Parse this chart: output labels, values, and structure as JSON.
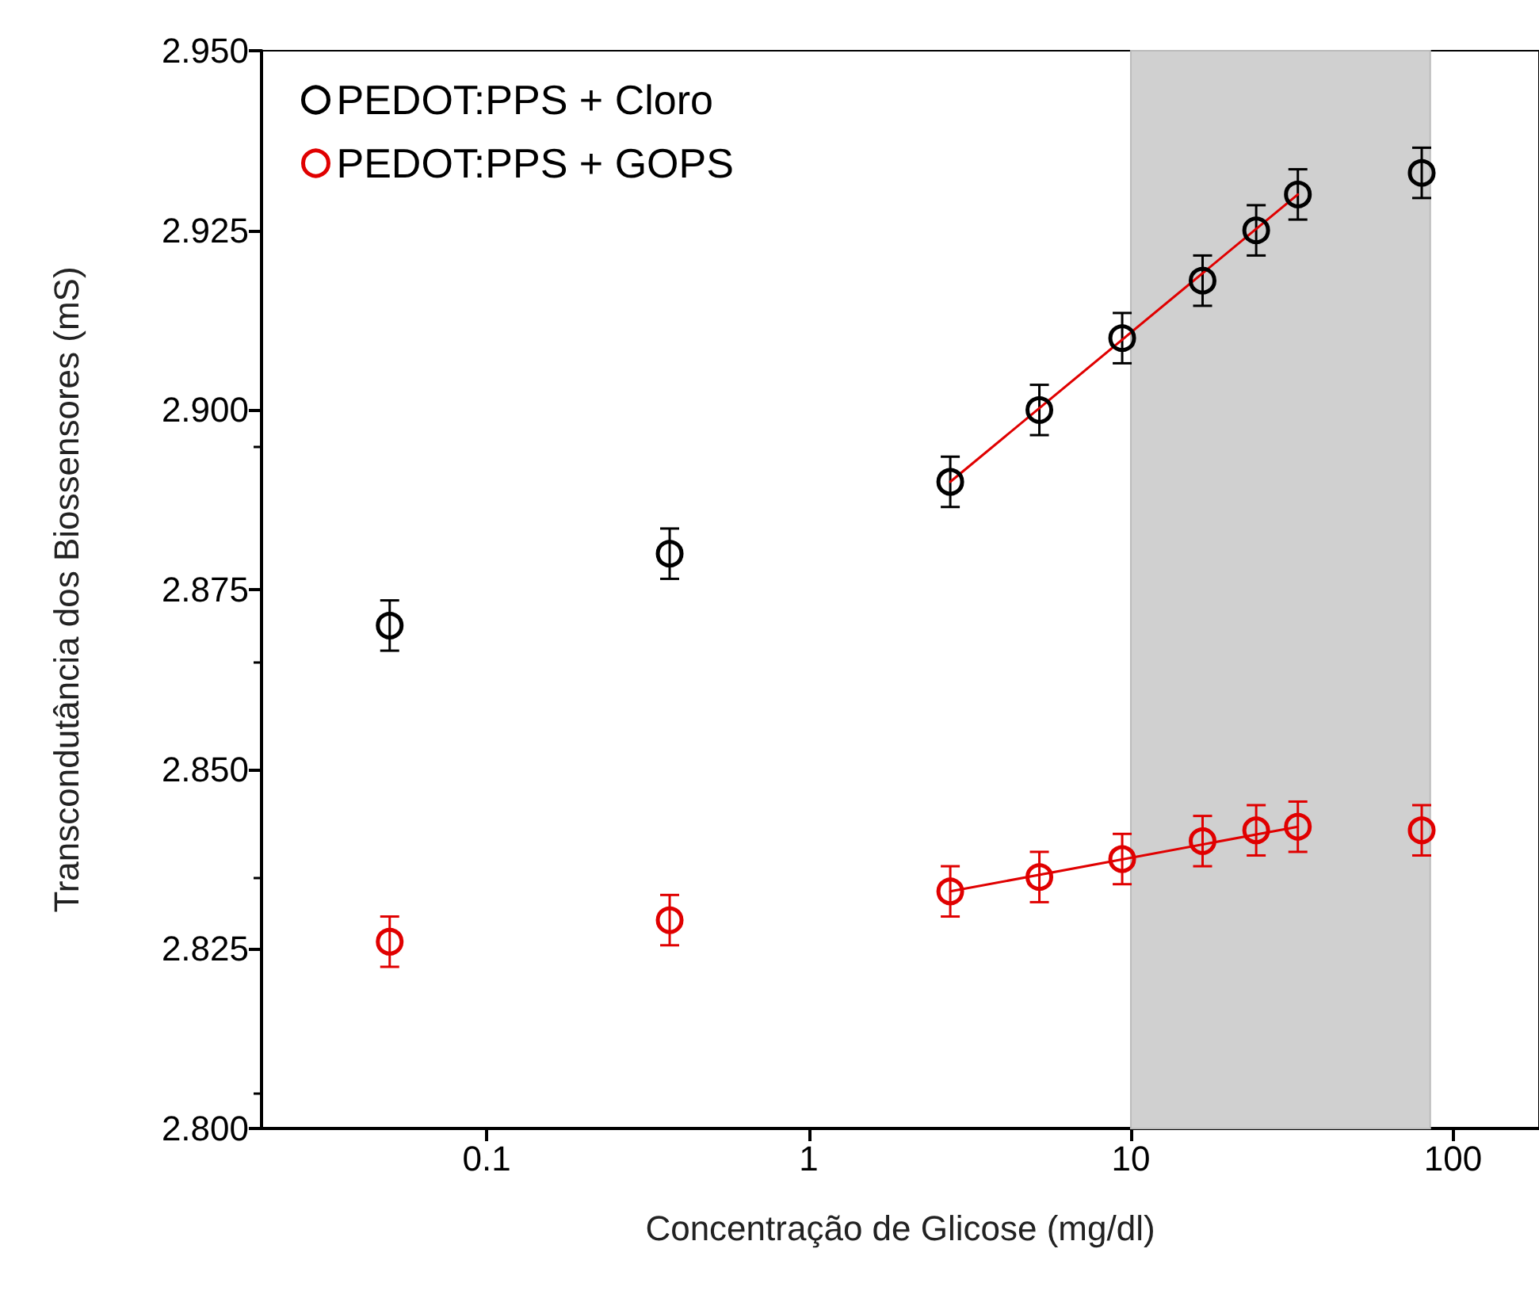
{
  "chart_data": {
    "type": "scatter",
    "xlabel": "Concentração de Glicose (mg/dl)",
    "ylabel": "Transcondutância dos Biossensores (mS)",
    "log": "x",
    "grid": false,
    "legend": "top left",
    "marker": "circle",
    "xlim": [
      0.02,
      185
    ],
    "xticks": [
      0.1,
      1,
      10,
      100
    ],
    "ylim": [
      2.8,
      2.95
    ],
    "yticks": [
      {
        "value": 2.8,
        "label": "2.800"
      },
      {
        "value": 2.825,
        "label": "2.825"
      },
      {
        "value": 2.85,
        "label": "2.850"
      },
      {
        "value": 2.875,
        "label": "2.875"
      },
      {
        "value": 2.9,
        "label": "2.900"
      },
      {
        "value": 2.925,
        "label": "2.925"
      },
      {
        "value": 2.95,
        "label": "2.950"
      }
    ],
    "bands": [
      {
        "axis": "x",
        "from": 10,
        "to": 85,
        "color": "#d0d0d0"
      }
    ],
    "series": [
      {
        "name": "PEDOT:PPS + Cloro",
        "color": "#000000",
        "x": [
          0.05,
          0.37,
          2.75,
          5.2,
          9.4,
          16.7,
          24.5,
          33,
          80
        ],
        "values": [
          2.87,
          2.88,
          2.89,
          2.9,
          2.91,
          2.918,
          2.925,
          2.93,
          2.933
        ],
        "errors": [
          0.0035,
          0.0035,
          0.0035,
          0.0035,
          0.0035,
          0.0035,
          0.0035,
          0.0035,
          0.0035
        ]
      },
      {
        "name": "PEDOT:PPS + GOPS",
        "color": "#e00000",
        "x": [
          0.05,
          0.37,
          2.75,
          5.2,
          9.4,
          16.7,
          24.5,
          33,
          80
        ],
        "values": [
          2.826,
          2.829,
          2.833,
          2.835,
          2.8375,
          2.84,
          2.8415,
          2.842,
          2.8415
        ],
        "errors": [
          0.0035,
          0.0035,
          0.0035,
          0.0035,
          0.0035,
          0.0035,
          0.0035,
          0.0035,
          0.0035
        ]
      },
      {
        "type": "line",
        "color": "#e00000",
        "marker": "none",
        "line_style": "solid",
        "x": [
          2.75,
          33
        ],
        "values": [
          2.89,
          2.93
        ]
      },
      {
        "type": "line",
        "color": "#e00000",
        "marker": "none",
        "line_style": "solid",
        "x": [
          2.75,
          33
        ],
        "values": [
          2.833,
          2.842
        ]
      }
    ]
  }
}
